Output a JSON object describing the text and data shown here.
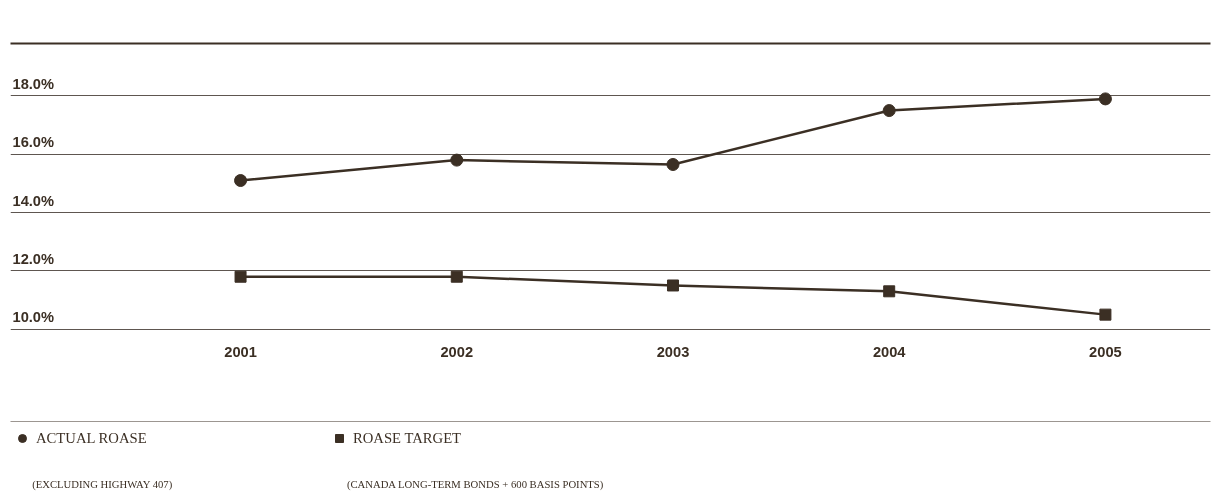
{
  "chart_data": {
    "type": "line",
    "categories": [
      "2001",
      "2002",
      "2003",
      "2004",
      "2005"
    ],
    "series": [
      {
        "name": "ACTUAL ROASE",
        "color": "#3b2f24",
        "marker": "circle",
        "values": [
          15.1,
          15.8,
          15.65,
          17.5,
          17.9
        ]
      },
      {
        "name": "ROASE TARGET",
        "color": "#3b2f24",
        "marker": "square",
        "values": [
          11.8,
          11.8,
          11.5,
          11.3,
          10.5
        ]
      }
    ],
    "ylim": [
      6.8,
      19.8
    ],
    "yticks": [
      {
        "value": 10,
        "label": "10.0%"
      },
      {
        "value": 12,
        "label": "12.0%"
      },
      {
        "value": 14,
        "label": "14.0%"
      },
      {
        "value": 16,
        "label": "16.0%"
      },
      {
        "value": 18,
        "label": "18.0%"
      }
    ],
    "grid": "y",
    "legend": "bottom left",
    "line_style": "solid",
    "annotations": [
      "(EXCLUDING HIGHWAY 407)",
      "(CANADA LONG-TERM BONDS + 600 BASIS POINTS)"
    ]
  }
}
